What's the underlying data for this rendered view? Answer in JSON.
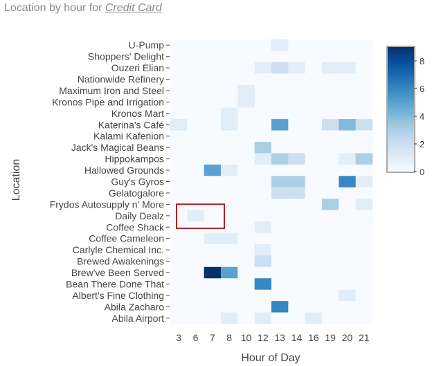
{
  "title": {
    "prefix": "Location by hour for ",
    "link": "Credit Card"
  },
  "colors": {
    "low": "#f7fbff",
    "high": "#08306b",
    "highlight": "#b22222"
  },
  "chart_data": {
    "type": "heatmap",
    "xlabel": "Hour of Day",
    "ylabel": "Location",
    "x": [
      "3",
      "6",
      "7",
      "8",
      "10",
      "12",
      "13",
      "14",
      "16",
      "19",
      "20",
      "21"
    ],
    "y": [
      "U-Pump",
      "Shoppers' Delight",
      "Ouzeri Elian",
      "Nationwide Refinery",
      "Maximum Iron and Steel",
      "Kronos Pipe and Irrigation",
      "Kronos Mart",
      "Katerina's Café",
      "Kalami Kafenion",
      "Jack's Magical Beans",
      "Hippokampos",
      "Hallowed Grounds",
      "Guy's Gyros",
      "Gelatogalore",
      "Frydos Autosupply n' More",
      "Daily Dealz",
      "Coffee Shack",
      "Coffee Cameleon",
      "Carlyle Chemical Inc.",
      "Brewed Awakenings",
      "Brew've Been Served",
      "Bean There Done That",
      "Albert's Fine Clothing",
      "Abila Zacharo",
      "Abila Airport"
    ],
    "z": [
      [
        0,
        0,
        0,
        0,
        0,
        0,
        1,
        0,
        0,
        0,
        0,
        0
      ],
      [
        0,
        0,
        0,
        0,
        0,
        0,
        0,
        0,
        0,
        0,
        0,
        0
      ],
      [
        0,
        0,
        0,
        0,
        0,
        1,
        2,
        1,
        0,
        1,
        1,
        0
      ],
      [
        0,
        0,
        0,
        0,
        0,
        0,
        0,
        0,
        0,
        0,
        0,
        0
      ],
      [
        0,
        0,
        0,
        0,
        1,
        0,
        0,
        0,
        0,
        0,
        0,
        0
      ],
      [
        0,
        0,
        0,
        0,
        1,
        0,
        0,
        0,
        0,
        0,
        0,
        0
      ],
      [
        0,
        0,
        0,
        1,
        0,
        0,
        0,
        0,
        0,
        0,
        0,
        0
      ],
      [
        1,
        0,
        0,
        1,
        0,
        0,
        5,
        0,
        0,
        2,
        4,
        2
      ],
      [
        0,
        0,
        0,
        0,
        0,
        0,
        0,
        0,
        0,
        0,
        0,
        0
      ],
      [
        0,
        0,
        0,
        0,
        0,
        3,
        0,
        0,
        0,
        0,
        0,
        0
      ],
      [
        0,
        0,
        0,
        0,
        0,
        1,
        3,
        2,
        0,
        0,
        1,
        3
      ],
      [
        0,
        0,
        5,
        1,
        0,
        0,
        0,
        0,
        0,
        0,
        0,
        0
      ],
      [
        0,
        0,
        0,
        0,
        0,
        0,
        3,
        3,
        0,
        0,
        6,
        1
      ],
      [
        0,
        0,
        0,
        0,
        0,
        0,
        2,
        2,
        0,
        0,
        0,
        0
      ],
      [
        0,
        0,
        0,
        0,
        0,
        0,
        0,
        0,
        0,
        3,
        0,
        1
      ],
      [
        0,
        1,
        0,
        0,
        0,
        0,
        0,
        0,
        0,
        0,
        0,
        0
      ],
      [
        0,
        0,
        0,
        0,
        0,
        1,
        0,
        0,
        0,
        0,
        0,
        0
      ],
      [
        0,
        0,
        1,
        1,
        0,
        0,
        0,
        0,
        0,
        0,
        0,
        0
      ],
      [
        0,
        0,
        0,
        0,
        0,
        1,
        0,
        0,
        0,
        0,
        0,
        0
      ],
      [
        0,
        0,
        0,
        0,
        0,
        2,
        0,
        0,
        0,
        0,
        0,
        0
      ],
      [
        0,
        0,
        9,
        5,
        0,
        0,
        0,
        0,
        0,
        0,
        0,
        0
      ],
      [
        0,
        0,
        0,
        0,
        0,
        6,
        0,
        0,
        0,
        0,
        0,
        0
      ],
      [
        0,
        0,
        0,
        0,
        0,
        0,
        0,
        0,
        0,
        0,
        1,
        0
      ],
      [
        0,
        0,
        0,
        0,
        0,
        0,
        6,
        0,
        0,
        0,
        0,
        0
      ],
      [
        0,
        0,
        0,
        1,
        0,
        1,
        0,
        0,
        1,
        0,
        0,
        0
      ]
    ],
    "zlim": [
      0,
      9
    ],
    "colorbar_ticks": [
      0,
      2,
      4,
      6,
      8
    ],
    "highlight": {
      "row": "Daily Dealz",
      "cols": [
        "3",
        "6",
        "7"
      ]
    }
  }
}
